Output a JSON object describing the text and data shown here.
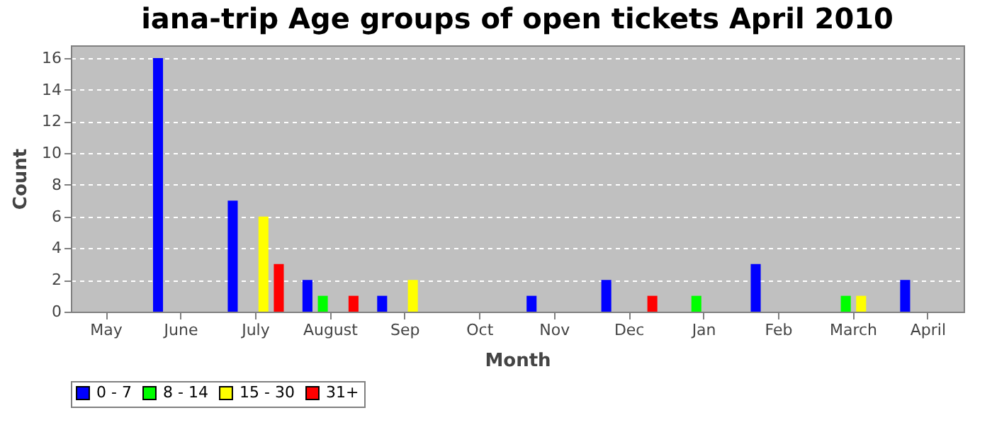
{
  "chart_data": {
    "type": "bar",
    "title": "iana-trip Age groups of open tickets April 2010",
    "xlabel": "Month",
    "ylabel": "Count",
    "categories": [
      "May",
      "June",
      "July",
      "August",
      "Sep",
      "Oct",
      "Nov",
      "Dec",
      "Jan",
      "Feb",
      "March",
      "April"
    ],
    "series": [
      {
        "name": "0 - 7",
        "color": "#0000ff",
        "values": [
          0,
          16,
          7,
          2,
          1,
          0,
          1,
          2,
          0,
          3,
          0,
          2
        ]
      },
      {
        "name": "8 - 14",
        "color": "#00ff00",
        "values": [
          0,
          0,
          0,
          1,
          0,
          0,
          0,
          0,
          1,
          0,
          1,
          0
        ]
      },
      {
        "name": "15 - 30",
        "color": "#ffff00",
        "values": [
          0,
          0,
          6,
          0,
          2,
          0,
          0,
          0,
          0,
          0,
          1,
          0
        ]
      },
      {
        "name": "31+",
        "color": "#ff0000",
        "values": [
          0,
          0,
          3,
          1,
          0,
          0,
          0,
          1,
          0,
          0,
          0,
          0
        ]
      }
    ],
    "ylim": [
      0,
      16.8
    ],
    "yticks": [
      0,
      2,
      4,
      6,
      8,
      10,
      12,
      14,
      16
    ],
    "grid": "y",
    "legend": "bottom"
  }
}
